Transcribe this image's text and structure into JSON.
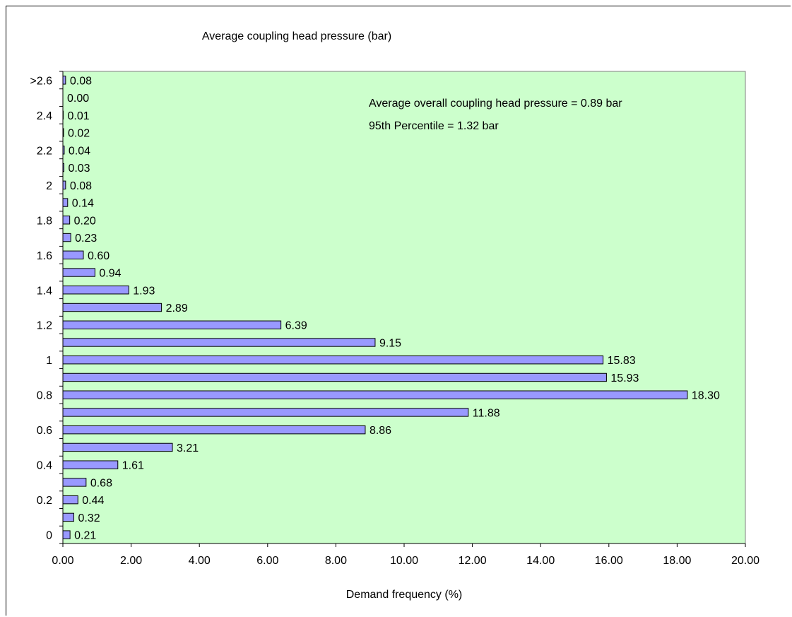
{
  "chart_data": {
    "type": "bar",
    "orientation": "horizontal",
    "title": "Average coupling head pressure (bar)",
    "xlabel": "Demand frequency (%)",
    "ylabel": "",
    "xlim": [
      0,
      20
    ],
    "x_ticks": [
      "0.00",
      "2.00",
      "4.00",
      "6.00",
      "8.00",
      "10.00",
      "12.00",
      "14.00",
      "16.00",
      "18.00",
      "20.00"
    ],
    "categories": [
      "0",
      "0.1",
      "0.2",
      "0.3",
      "0.4",
      "0.5",
      "0.6",
      "0.7",
      "0.8",
      "0.9",
      "1",
      "1.1",
      "1.2",
      "1.3",
      "1.4",
      "1.5",
      "1.6",
      "1.7",
      "1.8",
      "1.9",
      "2",
      "2.1",
      "2.2",
      "2.3",
      "2.4",
      "2.5",
      ">2.6"
    ],
    "category_tick_labels": [
      "0",
      "",
      "0.2",
      "",
      "0.4",
      "",
      "0.6",
      "",
      "0.8",
      "",
      "1",
      "",
      "1.2",
      "",
      "1.4",
      "",
      "1.6",
      "",
      "1.8",
      "",
      "2",
      "",
      "2.2",
      "",
      "2.4",
      "",
      ">2.6"
    ],
    "values": [
      0.21,
      0.32,
      0.44,
      0.68,
      1.61,
      3.21,
      8.86,
      11.88,
      18.3,
      15.93,
      15.83,
      9.15,
      6.39,
      2.89,
      1.93,
      0.94,
      0.6,
      0.23,
      0.2,
      0.14,
      0.08,
      0.03,
      0.04,
      0.02,
      0.01,
      0.0,
      0.08
    ],
    "value_labels": [
      "0.21",
      "0.32",
      "0.44",
      "0.68",
      "1.61",
      "3.21",
      "8.86",
      "11.88",
      "18.30",
      "15.93",
      "15.83",
      "9.15",
      "6.39",
      "2.89",
      "1.93",
      "0.94",
      "0.60",
      "0.23",
      "0.20",
      "0.14",
      "0.08",
      "0.03",
      "0.04",
      "0.02",
      "0.01",
      "0.00",
      "0.08"
    ],
    "annotations": [
      "Average overall coupling head pressure = 0.89 bar",
      "95th Percentile = 1.32 bar"
    ],
    "grid": false,
    "legend": "none",
    "colors": {
      "plot_background": "#ccffcc",
      "bar_fill": "#9999ff",
      "bar_stroke": "#000000"
    }
  }
}
